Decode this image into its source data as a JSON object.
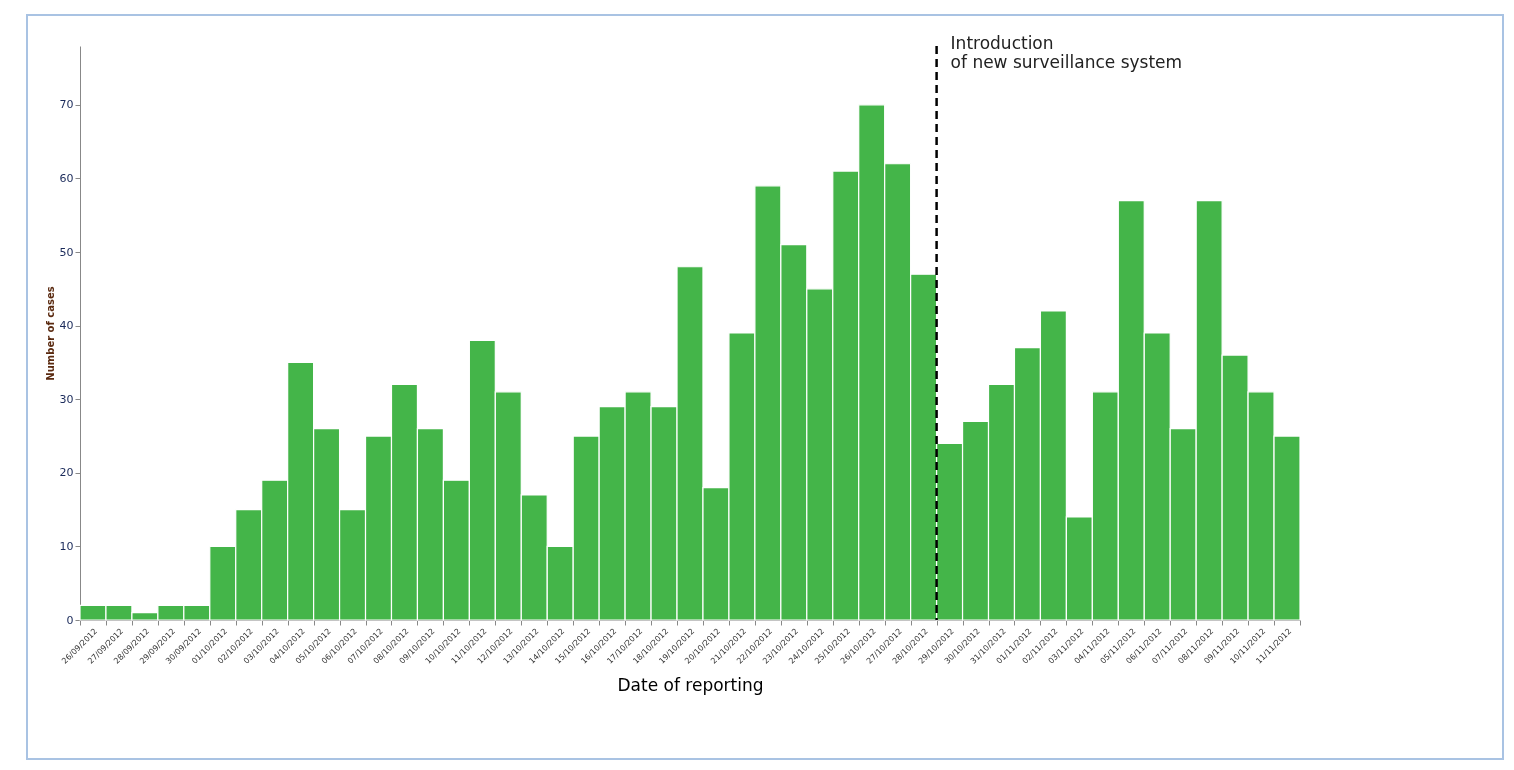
{
  "chart_data": {
    "type": "bar",
    "xlabel": "Date of reporting",
    "ylabel": "Number of cases",
    "categories": [
      "26/09/2012",
      "27/09/2012",
      "28/09/2012",
      "29/09/2012",
      "30/09/2012",
      "01/10/2012",
      "02/10/2012",
      "03/10/2012",
      "04/10/2012",
      "05/10/2012",
      "06/10/2012",
      "07/10/2012",
      "08/10/2012",
      "09/10/2012",
      "10/10/2012",
      "11/10/2012",
      "12/10/2012",
      "13/10/2012",
      "14/10/2012",
      "15/10/2012",
      "16/10/2012",
      "17/10/2012",
      "18/10/2012",
      "19/10/2012",
      "20/10/2012",
      "21/10/2012",
      "22/10/2012",
      "23/10/2012",
      "24/10/2012",
      "25/10/2012",
      "26/10/2012",
      "27/10/2012",
      "28/10/2012",
      "29/10/2012",
      "30/10/2012",
      "31/10/2012",
      "01/11/2012",
      "02/11/2012",
      "03/11/2012",
      "04/11/2012",
      "05/11/2012",
      "06/11/2012",
      "07/11/2012",
      "08/11/2012",
      "09/11/2012",
      "10/11/2012",
      "11/11/2012"
    ],
    "values": [
      2,
      2,
      1,
      2,
      2,
      10,
      15,
      19,
      35,
      26,
      15,
      25,
      32,
      26,
      19,
      38,
      31,
      17,
      10,
      25,
      29,
      31,
      29,
      48,
      18,
      39,
      59,
      51,
      45,
      61,
      70,
      62,
      47,
      24,
      27,
      32,
      37,
      42,
      14,
      31,
      57,
      39,
      26,
      57,
      36,
      31,
      25
    ],
    "color": "#44b549",
    "ylim": [
      0,
      78
    ],
    "yticks": [
      0,
      10,
      20,
      30,
      40,
      50,
      60,
      70
    ],
    "grid": false,
    "ref_lines": [
      {
        "axis": "x",
        "value": "29/10/2012",
        "label": "Introduction\nof new surveillance system",
        "color": "#000000",
        "line_style": "dashed"
      }
    ]
  }
}
